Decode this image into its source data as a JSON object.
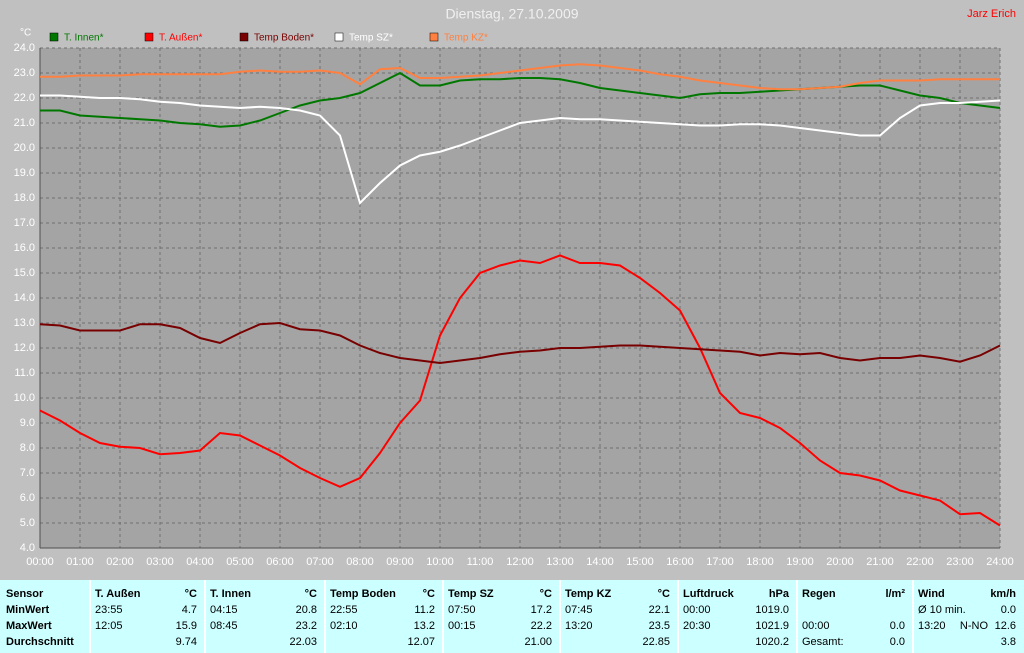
{
  "chart_data": {
    "type": "line",
    "title": "Dienstag, 27.10.2009",
    "author": "Jarz Erich",
    "y_label": "°C",
    "grid": true,
    "x": [
      0,
      0.5,
      1,
      1.5,
      2,
      2.5,
      3,
      3.5,
      4,
      4.5,
      5,
      5.5,
      6,
      6.5,
      7,
      7.5,
      8,
      8.5,
      9,
      9.5,
      10,
      10.5,
      11,
      11.5,
      12,
      12.5,
      13,
      13.5,
      14,
      14.5,
      15,
      15.5,
      16,
      16.5,
      17,
      17.5,
      18,
      18.5,
      19,
      19.5,
      20,
      20.5,
      21,
      21.5,
      22,
      22.5,
      23,
      23.5,
      24
    ],
    "xlim": [
      0,
      24
    ],
    "xticks": [
      {
        "value": 0,
        "label": "00:00"
      },
      {
        "value": 1,
        "label": "01:00"
      },
      {
        "value": 2,
        "label": "02:00"
      },
      {
        "value": 3,
        "label": "03:00"
      },
      {
        "value": 4,
        "label": "04:00"
      },
      {
        "value": 5,
        "label": "05:00"
      },
      {
        "value": 6,
        "label": "06:00"
      },
      {
        "value": 7,
        "label": "07:00"
      },
      {
        "value": 8,
        "label": "08:00"
      },
      {
        "value": 9,
        "label": "09:00"
      },
      {
        "value": 10,
        "label": "10:00"
      },
      {
        "value": 11,
        "label": "11:00"
      },
      {
        "value": 12,
        "label": "12:00"
      },
      {
        "value": 13,
        "label": "13:00"
      },
      {
        "value": 14,
        "label": "14:00"
      },
      {
        "value": 15,
        "label": "15:00"
      },
      {
        "value": 16,
        "label": "16:00"
      },
      {
        "value": 17,
        "label": "17:00"
      },
      {
        "value": 18,
        "label": "18:00"
      },
      {
        "value": 19,
        "label": "19:00"
      },
      {
        "value": 20,
        "label": "20:00"
      },
      {
        "value": 21,
        "label": "21:00"
      },
      {
        "value": 22,
        "label": "22:00"
      },
      {
        "value": 23,
        "label": "23:00"
      },
      {
        "value": 24,
        "label": "24:00"
      }
    ],
    "ylim": [
      4,
      24
    ],
    "yticks": [
      {
        "value": 4,
        "label": "4.0"
      },
      {
        "value": 5,
        "label": "5.0"
      },
      {
        "value": 6,
        "label": "6.0"
      },
      {
        "value": 7,
        "label": "7.0"
      },
      {
        "value": 8,
        "label": "8.0"
      },
      {
        "value": 9,
        "label": "9.0"
      },
      {
        "value": 10,
        "label": "10.0"
      },
      {
        "value": 11,
        "label": "11.0"
      },
      {
        "value": 12,
        "label": "12.0"
      },
      {
        "value": 13,
        "label": "13.0"
      },
      {
        "value": 14,
        "label": "14.0"
      },
      {
        "value": 15,
        "label": "15.0"
      },
      {
        "value": 16,
        "label": "16.0"
      },
      {
        "value": 17,
        "label": "17.0"
      },
      {
        "value": 18,
        "label": "18.0"
      },
      {
        "value": 19,
        "label": "19.0"
      },
      {
        "value": 20,
        "label": "20.0"
      },
      {
        "value": 21,
        "label": "21.0"
      },
      {
        "value": 22,
        "label": "22.0"
      },
      {
        "value": 23,
        "label": "23.0"
      },
      {
        "value": 24,
        "label": "24.0"
      }
    ],
    "series": [
      {
        "name": "T. Innen*",
        "color": "#007800",
        "values": [
          21.5,
          21.5,
          21.3,
          21.25,
          21.2,
          21.15,
          21.1,
          21.0,
          20.95,
          20.85,
          20.9,
          21.1,
          21.4,
          21.7,
          21.9,
          22.0,
          22.2,
          22.6,
          23.0,
          22.5,
          22.5,
          22.7,
          22.75,
          22.75,
          22.8,
          22.8,
          22.75,
          22.6,
          22.4,
          22.3,
          22.2,
          22.1,
          22.0,
          22.15,
          22.2,
          22.2,
          22.25,
          22.3,
          22.35,
          22.4,
          22.45,
          22.5,
          22.5,
          22.3,
          22.1,
          22.0,
          21.8,
          21.7,
          21.6
        ]
      },
      {
        "name": "T. Außen*",
        "color": "#ff0000",
        "values": [
          9.5,
          9.1,
          8.6,
          8.2,
          8.05,
          8.0,
          7.75,
          7.8,
          7.9,
          8.6,
          8.5,
          8.1,
          7.7,
          7.2,
          6.8,
          6.45,
          6.8,
          7.8,
          9.0,
          9.9,
          12.5,
          14.0,
          15.0,
          15.3,
          15.5,
          15.4,
          15.7,
          15.4,
          15.4,
          15.3,
          14.8,
          14.2,
          13.5,
          12.0,
          10.2,
          9.4,
          9.2,
          8.8,
          8.2,
          7.5,
          7.0,
          6.9,
          6.7,
          6.3,
          6.1,
          5.9,
          5.35,
          5.4,
          4.9
        ]
      },
      {
        "name": "Temp Boden*",
        "color": "#780000",
        "values": [
          12.95,
          12.9,
          12.7,
          12.7,
          12.7,
          12.95,
          12.95,
          12.8,
          12.4,
          12.2,
          12.6,
          12.95,
          13.0,
          12.75,
          12.7,
          12.5,
          12.1,
          11.8,
          11.6,
          11.5,
          11.4,
          11.5,
          11.6,
          11.75,
          11.85,
          11.9,
          12.0,
          12.0,
          12.05,
          12.1,
          12.1,
          12.05,
          12.0,
          11.95,
          11.9,
          11.85,
          11.7,
          11.8,
          11.75,
          11.8,
          11.6,
          11.5,
          11.6,
          11.6,
          11.7,
          11.6,
          11.45,
          11.7,
          12.1
        ]
      },
      {
        "name": "Temp SZ*",
        "color": "#ffffff",
        "values": [
          22.1,
          22.1,
          22.05,
          22.0,
          22.0,
          21.95,
          21.85,
          21.8,
          21.7,
          21.65,
          21.6,
          21.65,
          21.6,
          21.5,
          21.3,
          20.5,
          17.8,
          18.6,
          19.3,
          19.7,
          19.85,
          20.1,
          20.4,
          20.7,
          21.0,
          21.1,
          21.2,
          21.15,
          21.15,
          21.1,
          21.05,
          21.0,
          20.95,
          20.9,
          20.9,
          20.95,
          20.95,
          20.9,
          20.8,
          20.7,
          20.6,
          20.5,
          20.5,
          21.2,
          21.7,
          21.8,
          21.8,
          21.85,
          21.9
        ]
      },
      {
        "name": "Temp KZ*",
        "color": "#ff8040",
        "values": [
          22.85,
          22.85,
          22.9,
          22.9,
          22.9,
          22.95,
          22.95,
          22.95,
          22.95,
          22.95,
          23.05,
          23.1,
          23.05,
          23.05,
          23.1,
          23.0,
          22.55,
          23.15,
          23.2,
          22.8,
          22.8,
          22.85,
          22.9,
          23.0,
          23.1,
          23.2,
          23.3,
          23.35,
          23.3,
          23.2,
          23.1,
          22.95,
          22.85,
          22.7,
          22.6,
          22.5,
          22.4,
          22.35,
          22.35,
          22.4,
          22.45,
          22.6,
          22.7,
          22.7,
          22.7,
          22.75,
          22.75,
          22.75,
          22.75
        ]
      }
    ]
  },
  "stats": {
    "row_labels": [
      "Sensor",
      "MinWert",
      "MaxWert",
      "Durchschnitt"
    ],
    "groups": [
      {
        "name": "T. Außen",
        "unit": "°C",
        "rows": [
          [
            "23:55",
            "4.7"
          ],
          [
            "12:05",
            "15.9"
          ],
          [
            "9.74"
          ]
        ]
      },
      {
        "name": "T. Innen",
        "unit": "°C",
        "rows": [
          [
            "04:15",
            "20.8"
          ],
          [
            "08:45",
            "23.2"
          ],
          [
            "22.03"
          ]
        ]
      },
      {
        "name": "Temp Boden",
        "unit": "°C",
        "rows": [
          [
            "22:55",
            "11.2"
          ],
          [
            "02:10",
            "13.2"
          ],
          [
            "12.07"
          ]
        ]
      },
      {
        "name": "Temp SZ",
        "unit": "°C",
        "rows": [
          [
            "07:50",
            "17.2"
          ],
          [
            "00:15",
            "22.2"
          ],
          [
            "21.00"
          ]
        ]
      },
      {
        "name": "Temp KZ",
        "unit": "°C",
        "rows": [
          [
            "07:45",
            "22.1"
          ],
          [
            "13:20",
            "23.5"
          ],
          [
            "22.85"
          ]
        ]
      },
      {
        "name": "Luftdruck",
        "unit": "hPa",
        "rows": [
          [
            "00:00",
            "1019.0"
          ],
          [
            "20:30",
            "1021.9"
          ],
          [
            "1020.2"
          ]
        ]
      },
      {
        "name": "Regen",
        "unit": "l/m²",
        "rows": [
          null,
          [
            "00:00",
            "0.0"
          ],
          [
            "Gesamt:",
            "0.0"
          ]
        ]
      },
      {
        "name": "Wind",
        "unit": "km/h",
        "rows": [
          [
            "Ø 10 min.",
            "0.0"
          ],
          [
            "13:20",
            "N-NO",
            "12.6"
          ],
          [
            "3.8"
          ]
        ]
      }
    ]
  }
}
